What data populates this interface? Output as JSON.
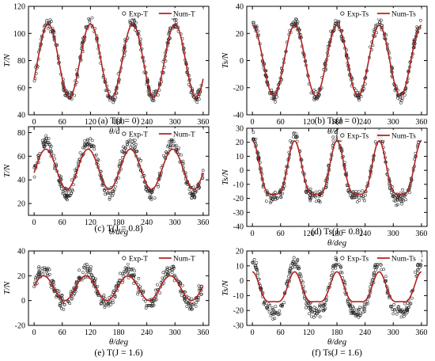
{
  "chart_data": [
    {
      "type": "scatter",
      "caption": "(a) T(J = 0)",
      "xlabel": "θ/deg",
      "ylabel": "T/N",
      "xlim": [
        -12,
        372
      ],
      "ylim": [
        40,
        120
      ],
      "xticks": [
        0,
        60,
        120,
        180,
        240,
        300,
        360
      ],
      "yticks": [
        40,
        60,
        80,
        100,
        120
      ],
      "legend": [
        "Exp-T",
        "Num-T"
      ],
      "series": [
        {
          "name": "Exp-T",
          "mean": 80,
          "amp": 28,
          "phase": 30,
          "harmonic2": 0,
          "scatter": 4
        },
        {
          "name": "Num-T",
          "mean": 80,
          "amp": 27,
          "phase": 30,
          "harmonic2": 0
        }
      ]
    },
    {
      "type": "scatter",
      "caption": "(b) Ts(J = 0)",
      "xlabel": "θ/deg",
      "ylabel": "Ts/N",
      "xlim": [
        -12,
        372
      ],
      "ylim": [
        -40,
        40
      ],
      "xticks": [
        0,
        60,
        120,
        180,
        240,
        300,
        360
      ],
      "yticks": [
        -40,
        -20,
        0,
        20,
        40
      ],
      "legend": [
        "Exp-Ts",
        "Num-Ts"
      ],
      "series": [
        {
          "name": "Exp-Ts",
          "mean": 0,
          "amp": 27,
          "phase": 0,
          "harmonic2": 0,
          "scatter": 3.5
        },
        {
          "name": "Num-Ts",
          "mean": 0,
          "amp": 26,
          "phase": 0,
          "harmonic2": 0
        }
      ]
    },
    {
      "type": "scatter",
      "caption": "(c) T(J = 0.8)",
      "xlabel": "θ/deg",
      "ylabel": "T/N",
      "xlim": [
        -12,
        372
      ],
      "ylim": [
        10,
        85
      ],
      "xticks": [
        0,
        60,
        120,
        180,
        240,
        300,
        360
      ],
      "yticks": [
        20,
        40,
        60,
        80
      ],
      "legend": [
        "Exp-T",
        "Num-T"
      ],
      "series": [
        {
          "name": "Exp-T",
          "mean": 50,
          "amp": 22,
          "phase": 25,
          "harmonic2": 0,
          "scatter": 5
        },
        {
          "name": "Num-T",
          "mean": 49,
          "amp": 17,
          "phase": 25,
          "harmonic2": 0
        }
      ]
    },
    {
      "type": "scatter",
      "caption": "(d) Ts(J = 0.8)",
      "xlabel": "θ/deg",
      "ylabel": "Ts/N",
      "xlim": [
        -12,
        372
      ],
      "ylim": [
        -40,
        30
      ],
      "xticks": [
        0,
        60,
        120,
        180,
        240,
        300,
        360
      ],
      "yticks": [
        -40,
        -30,
        -20,
        -10,
        0,
        10,
        20,
        30
      ],
      "legend": [
        "Exp-Ts",
        "Num-Ts"
      ],
      "series": [
        {
          "name": "Exp-Ts",
          "mean": -3,
          "amp": 22,
          "phase": 0,
          "harmonic2": 6,
          "scatter": 4
        },
        {
          "name": "Num-Ts",
          "mean": -3,
          "amp": 19,
          "phase": 0,
          "harmonic2": 5
        }
      ]
    },
    {
      "type": "scatter",
      "caption": "(e) T(J = 1.6)",
      "xlabel": "θ/deg",
      "ylabel": "T/N",
      "xlim": [
        -12,
        372
      ],
      "ylim": [
        -20,
        40
      ],
      "xticks": [
        0,
        60,
        120,
        180,
        240,
        300,
        360
      ],
      "yticks": [
        -20,
        0,
        20,
        40
      ],
      "legend": [
        "Exp-T",
        "Num-T"
      ],
      "series": [
        {
          "name": "Exp-T",
          "mean": 11,
          "amp": 14,
          "phase": 20,
          "harmonic2": 0,
          "scatter": 5
        },
        {
          "name": "Num-T",
          "mean": 10,
          "amp": 10,
          "phase": 20,
          "harmonic2": 0
        }
      ]
    },
    {
      "type": "scatter",
      "caption": "(f) Ts(J = 1.6)",
      "xlabel": "θ/deg",
      "ylabel": "Ts/N",
      "xlim": [
        -12,
        372
      ],
      "ylim": [
        -30,
        20
      ],
      "xticks": [
        0,
        60,
        120,
        180,
        240,
        300,
        360
      ],
      "yticks": [
        -30,
        -20,
        -10,
        0,
        10,
        20
      ],
      "legend": [
        "Exp-Ts",
        "Num-Ts"
      ],
      "series": [
        {
          "name": "Exp-Ts",
          "mean": -8,
          "amp": 17,
          "phase": 0,
          "harmonic2": 4,
          "scatter": 3.5
        },
        {
          "name": "Num-Ts",
          "mean": -7,
          "amp": 10,
          "phase": 0,
          "harmonic2": 3
        }
      ]
    }
  ],
  "colors": {
    "num_line": "#b22222",
    "exp_marker": "#222222",
    "axis": "#000000"
  }
}
